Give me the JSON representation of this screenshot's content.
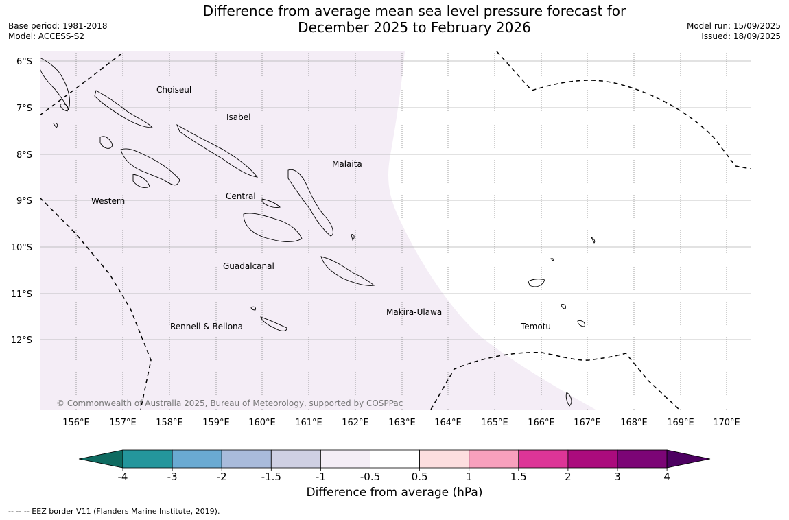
{
  "title": {
    "line1": "Difference from average mean sea level pressure forecast for",
    "line2": "December 2025 to February 2026"
  },
  "meta_left": {
    "base_period": "Base period: 1981-2018",
    "model": "Model: ACCESS-S2"
  },
  "meta_right": {
    "model_run": "Model run: 15/09/2025",
    "issued": "Issued: 18/09/2025"
  },
  "latitude_labels": [
    "6°S",
    "7°S",
    "8°S",
    "9°S",
    "10°S",
    "11°S",
    "12°S"
  ],
  "longitude_labels": [
    "156°E",
    "157°E",
    "158°E",
    "159°E",
    "160°E",
    "161°E",
    "162°E",
    "163°E",
    "164°E",
    "165°E",
    "166°E",
    "167°E",
    "168°E",
    "169°E",
    "170°E"
  ],
  "regions": [
    "Choiseul",
    "Isabel",
    "Malaita",
    "Western",
    "Central",
    "Guadalcanal",
    "Makira-Ulawa",
    "Rennell & Bellona",
    "Temotu"
  ],
  "copyright": "© Commonwealth of Australia 2025, Bureau of Meteorology, supported by COSPPac",
  "colorbar": {
    "ticks": [
      "-4",
      "-3",
      "-2",
      "-1.5",
      "-1",
      "-0.5",
      "0.5",
      "1",
      "1.5",
      "2",
      "3",
      "4"
    ],
    "colors": [
      "#0f6b61",
      "#24969c",
      "#6aaad2",
      "#a9bbdb",
      "#cfd0e3",
      "#f4edf6",
      "#ffffff",
      "#fddedf",
      "#f8a0bd",
      "#dd3597",
      "#ab0b7d",
      "#7c0576",
      "#4d0161"
    ],
    "label": "Difference from average (hPa)"
  },
  "shading": {
    "region_color": "#f4edf6",
    "background_color": "#ffffff"
  },
  "legend_footer": "--  --  -- EEZ border V11 (Flanders Marine Institute, 2019)."
}
